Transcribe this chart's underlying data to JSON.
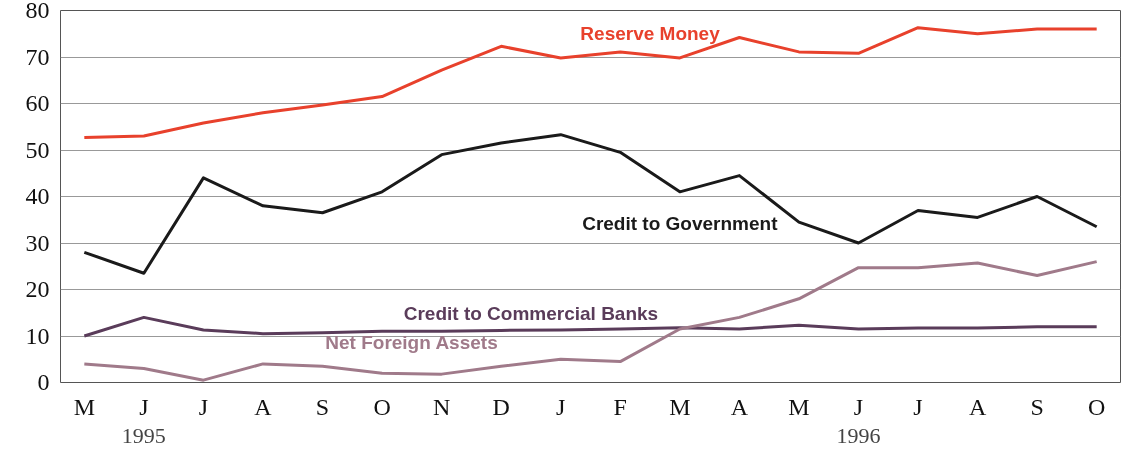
{
  "chart_data": {
    "type": "line",
    "categories": [
      "M",
      "J",
      "J",
      "A",
      "S",
      "O",
      "N",
      "D",
      "J",
      "F",
      "M",
      "A",
      "M",
      "J",
      "J",
      "A",
      "S",
      "O"
    ],
    "series": [
      {
        "name": "Reserve Money",
        "color": "#e8412c",
        "values": [
          52.7,
          53,
          55.8,
          58,
          59.7,
          61.5,
          67.2,
          72.3,
          69.8,
          71.1,
          69.8,
          74.2,
          71.1,
          70.8,
          76.3,
          75,
          76,
          76
        ]
      },
      {
        "name": "Credit to Government",
        "color": "#1a1a1a",
        "values": [
          28,
          23.5,
          44,
          38,
          36.5,
          41,
          49,
          51.5,
          53.3,
          49.5,
          41,
          44.5,
          34.5,
          30,
          37,
          35.5,
          40,
          33.5
        ]
      },
      {
        "name": "Credit to Commercial Banks",
        "color": "#5a3c5a",
        "values": [
          10,
          14,
          11.3,
          10.5,
          10.7,
          11,
          11,
          11.2,
          11.3,
          11.5,
          11.8,
          11.5,
          12.3,
          11.5,
          11.7,
          11.7,
          12,
          12
        ]
      },
      {
        "name": "Net Foreign Assets",
        "color": "#a07a8a",
        "values": [
          4,
          3,
          0.5,
          4,
          3.5,
          2,
          1.8,
          3.5,
          5,
          4.5,
          11.5,
          14,
          18,
          24.7,
          24.7,
          25.7,
          23,
          26
        ]
      }
    ],
    "ylim": [
      0,
      80
    ],
    "yticks": [
      0,
      10,
      20,
      30,
      40,
      50,
      60,
      70,
      80
    ],
    "grid": "y",
    "marker": "none",
    "line_style": "solid",
    "annotations": [
      "1995",
      "1996"
    ]
  }
}
